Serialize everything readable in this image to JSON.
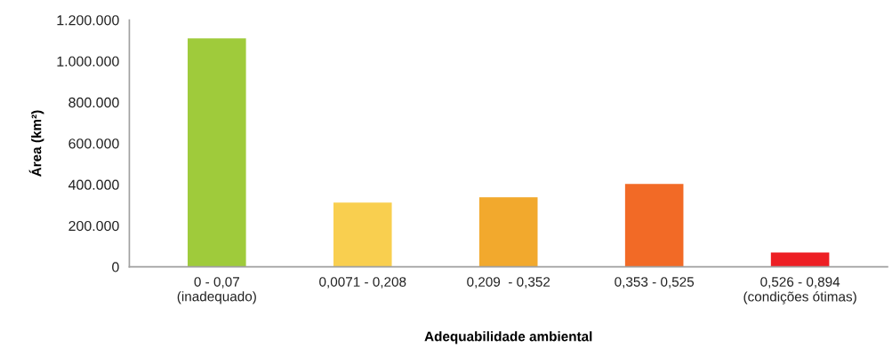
{
  "chart_data": {
    "type": "bar",
    "xlabel": "Adequabilidade ambiental",
    "ylabel": "Área (km²)",
    "categories": [
      "0 - 0,07\n(inadequado)",
      "0,0071 - 0,208",
      "0,209  - 0,352",
      "0,353 - 0,525",
      "0,526 - 0,894\n(condições ótimas)"
    ],
    "values": [
      1110000,
      312000,
      338000,
      403000,
      70000
    ],
    "colors": [
      "#9fcb3b",
      "#f9cf4f",
      "#f2a92d",
      "#f26a26",
      "#ed1f24"
    ],
    "ylim": [
      0,
      1200000
    ],
    "yticks": [
      {
        "value": 0,
        "label": "0"
      },
      {
        "value": 200000,
        "label": "200.000"
      },
      {
        "value": 400000,
        "label": "400.000"
      },
      {
        "value": 600000,
        "label": "600.000"
      },
      {
        "value": 800000,
        "label": "800.000"
      },
      {
        "value": 1000000,
        "label": "1.000.000"
      },
      {
        "value": 1200000,
        "label": "1.200.000"
      }
    ],
    "grid": false,
    "legend": false
  }
}
